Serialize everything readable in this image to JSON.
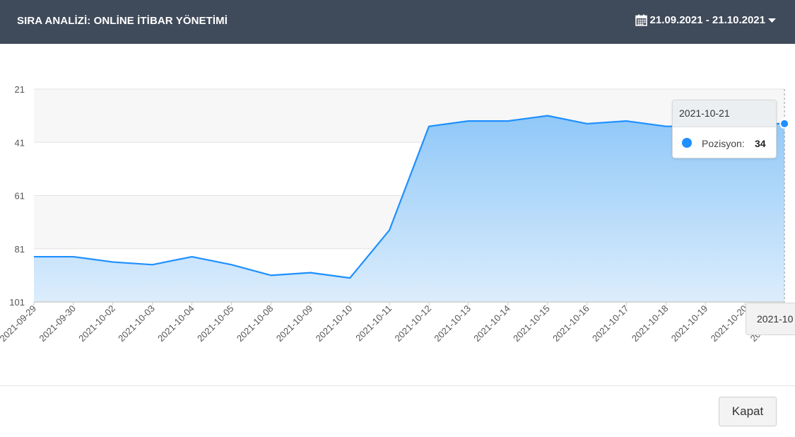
{
  "header": {
    "title": "SIRA ANALİZİ: ONLİNE İTİBAR YÖNETİMİ",
    "date_range": "21.09.2021 - 21.10.2021"
  },
  "tooltip": {
    "date": "2021-10-21",
    "series_label": "Pozisyon:",
    "value": "34"
  },
  "crosshair_label": "2021-10",
  "footer": {
    "close_label": "Kapat"
  },
  "colors": {
    "header_bg": "#3f4a5a",
    "series": "#1e90ff",
    "area_top": "#90c8f8",
    "area_bottom": "#dcedfc"
  },
  "chart_data": {
    "type": "area",
    "title": "",
    "xlabel": "",
    "ylabel": "",
    "y_reversed": true,
    "ylim": [
      21,
      101
    ],
    "yticks": [
      21,
      41,
      61,
      81,
      101
    ],
    "grid": true,
    "categories": [
      "2021-09-29",
      "2021-09-30",
      "2021-10-02",
      "2021-10-03",
      "2021-10-04",
      "2021-10-05",
      "2021-10-08",
      "2021-10-09",
      "2021-10-10",
      "2021-10-11",
      "2021-10-12",
      "2021-10-13",
      "2021-10-14",
      "2021-10-15",
      "2021-10-16",
      "2021-10-17",
      "2021-10-18",
      "2021-10-19",
      "2021-10-20",
      "2021-10-21"
    ],
    "series": [
      {
        "name": "Pozisyon",
        "values": [
          84,
          84,
          86,
          87,
          84,
          87,
          91,
          90,
          92,
          74,
          35,
          33,
          33,
          31,
          34,
          33,
          35,
          35,
          34,
          34
        ]
      }
    ]
  }
}
